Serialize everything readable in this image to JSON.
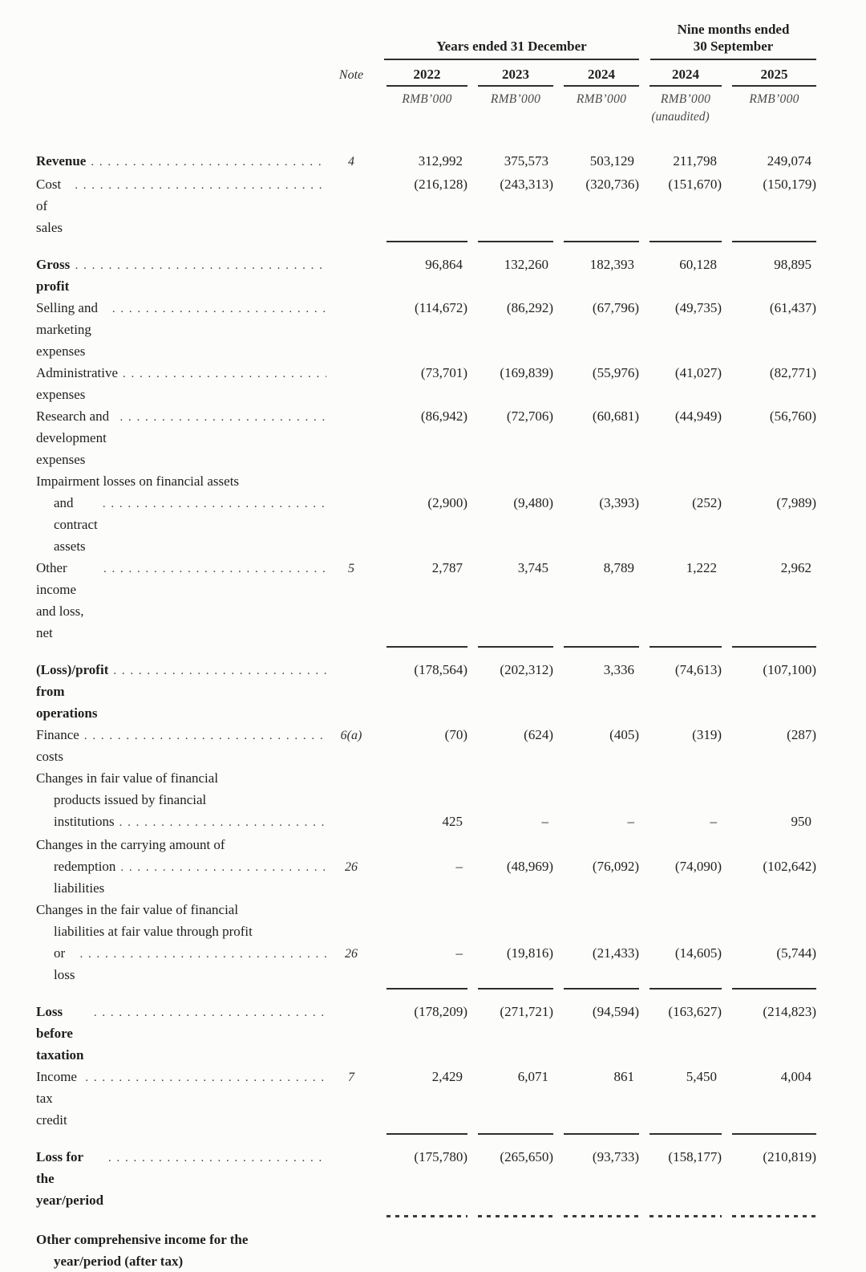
{
  "header": {
    "group_years": "Years ended 31 December",
    "group_nine_months_line1": "Nine months ended",
    "group_nine_months_line2": "30 September",
    "note_label": "Note",
    "years": [
      "2022",
      "2023",
      "2024",
      "2024",
      "2025"
    ],
    "currency": [
      "RMB’000",
      "RMB’000",
      "RMB’000",
      "RMB’000",
      "RMB’000"
    ],
    "unaudited": "(unaudited)"
  },
  "rows": [
    {
      "lines": [
        "Revenue"
      ],
      "bold": true,
      "note": "4",
      "leader": true,
      "values": [
        "312,992",
        "375,573",
        "503,129",
        "211,798",
        "249,074"
      ],
      "rule_below": null,
      "gap_before": false
    },
    {
      "lines": [
        "Cost of sales"
      ],
      "bold": false,
      "note": "",
      "leader": true,
      "values": [
        "(216,128)",
        "(243,313)",
        "(320,736)",
        "(151,670)",
        "(150,179)"
      ],
      "rule_below": "solid",
      "gap_before": false
    },
    {
      "lines": [
        "Gross profit"
      ],
      "bold": true,
      "note": "",
      "leader": true,
      "values": [
        "96,864",
        "132,260",
        "182,393",
        "60,128",
        "98,895"
      ],
      "rule_below": null,
      "gap_before": true
    },
    {
      "lines": [
        "Selling and marketing expenses"
      ],
      "bold": false,
      "note": "",
      "leader": true,
      "values": [
        "(114,672)",
        "(86,292)",
        "(67,796)",
        "(49,735)",
        "(61,437)"
      ],
      "rule_below": null,
      "gap_before": false
    },
    {
      "lines": [
        "Administrative expenses"
      ],
      "bold": false,
      "note": "",
      "leader": true,
      "values": [
        "(73,701)",
        "(169,839)",
        "(55,976)",
        "(41,027)",
        "(82,771)"
      ],
      "rule_below": null,
      "gap_before": false
    },
    {
      "lines": [
        "Research and development expenses"
      ],
      "bold": false,
      "note": "",
      "leader": true,
      "values": [
        "(86,942)",
        "(72,706)",
        "(60,681)",
        "(44,949)",
        "(56,760)"
      ],
      "rule_below": null,
      "gap_before": false
    },
    {
      "lines": [
        "Impairment losses on financial assets",
        "and contract assets"
      ],
      "bold": false,
      "note": "",
      "leader": true,
      "values": [
        "(2,900)",
        "(9,480)",
        "(3,393)",
        "(252)",
        "(7,989)"
      ],
      "rule_below": null,
      "gap_before": false
    },
    {
      "lines": [
        "Other income and loss, net"
      ],
      "bold": false,
      "note": "5",
      "leader": true,
      "values": [
        "2,787",
        "3,745",
        "8,789",
        "1,222",
        "2,962"
      ],
      "rule_below": "solid",
      "gap_before": false
    },
    {
      "lines": [
        "(Loss)/profit from operations"
      ],
      "bold": true,
      "note": "",
      "leader": true,
      "values": [
        "(178,564)",
        "(202,312)",
        "3,336",
        "(74,613)",
        "(107,100)"
      ],
      "rule_below": null,
      "gap_before": true
    },
    {
      "lines": [
        "Finance costs"
      ],
      "bold": false,
      "note": "6(a)",
      "leader": true,
      "values": [
        "(70)",
        "(624)",
        "(405)",
        "(319)",
        "(287)"
      ],
      "rule_below": null,
      "gap_before": false
    },
    {
      "lines": [
        "Changes in fair value of financial",
        "products issued by financial",
        "institutions"
      ],
      "bold": false,
      "note": "",
      "leader": true,
      "values": [
        "425",
        "–",
        "–",
        "–",
        "950"
      ],
      "rule_below": null,
      "gap_before": false
    },
    {
      "lines": [
        "Changes in the carrying amount of",
        "redemption liabilities"
      ],
      "bold": false,
      "note": "26",
      "leader": true,
      "values": [
        "–",
        "(48,969)",
        "(76,092)",
        "(74,090)",
        "(102,642)"
      ],
      "rule_below": null,
      "gap_before": false
    },
    {
      "lines": [
        "Changes in the fair value of financial",
        "liabilities at fair value through profit",
        "or loss"
      ],
      "bold": false,
      "note": "26",
      "leader": true,
      "values": [
        "–",
        "(19,816)",
        "(21,433)",
        "(14,605)",
        "(5,744)"
      ],
      "rule_below": "solid",
      "gap_before": false
    },
    {
      "lines": [
        "Loss before taxation"
      ],
      "bold": true,
      "note": "",
      "leader": true,
      "values": [
        "(178,209)",
        "(271,721)",
        "(94,594)",
        "(163,627)",
        "(214,823)"
      ],
      "rule_below": null,
      "gap_before": true
    },
    {
      "lines": [
        "Income tax credit"
      ],
      "bold": false,
      "note": "7",
      "leader": true,
      "values": [
        "2,429",
        "6,071",
        "861",
        "5,450",
        "4,004"
      ],
      "rule_below": "solid",
      "gap_before": false
    },
    {
      "lines": [
        "Loss for the year/period"
      ],
      "bold": true,
      "note": "",
      "leader": true,
      "values": [
        "(175,780)",
        "(265,650)",
        "(93,733)",
        "(158,177)",
        "(210,819)"
      ],
      "rule_below": "dotted",
      "gap_before": true
    },
    {
      "lines": [
        "Other comprehensive income for the",
        "year/period (after tax)"
      ],
      "bold": true,
      "note": "",
      "leader": false,
      "values": null,
      "rule_below": null,
      "gap_before": true
    }
  ]
}
